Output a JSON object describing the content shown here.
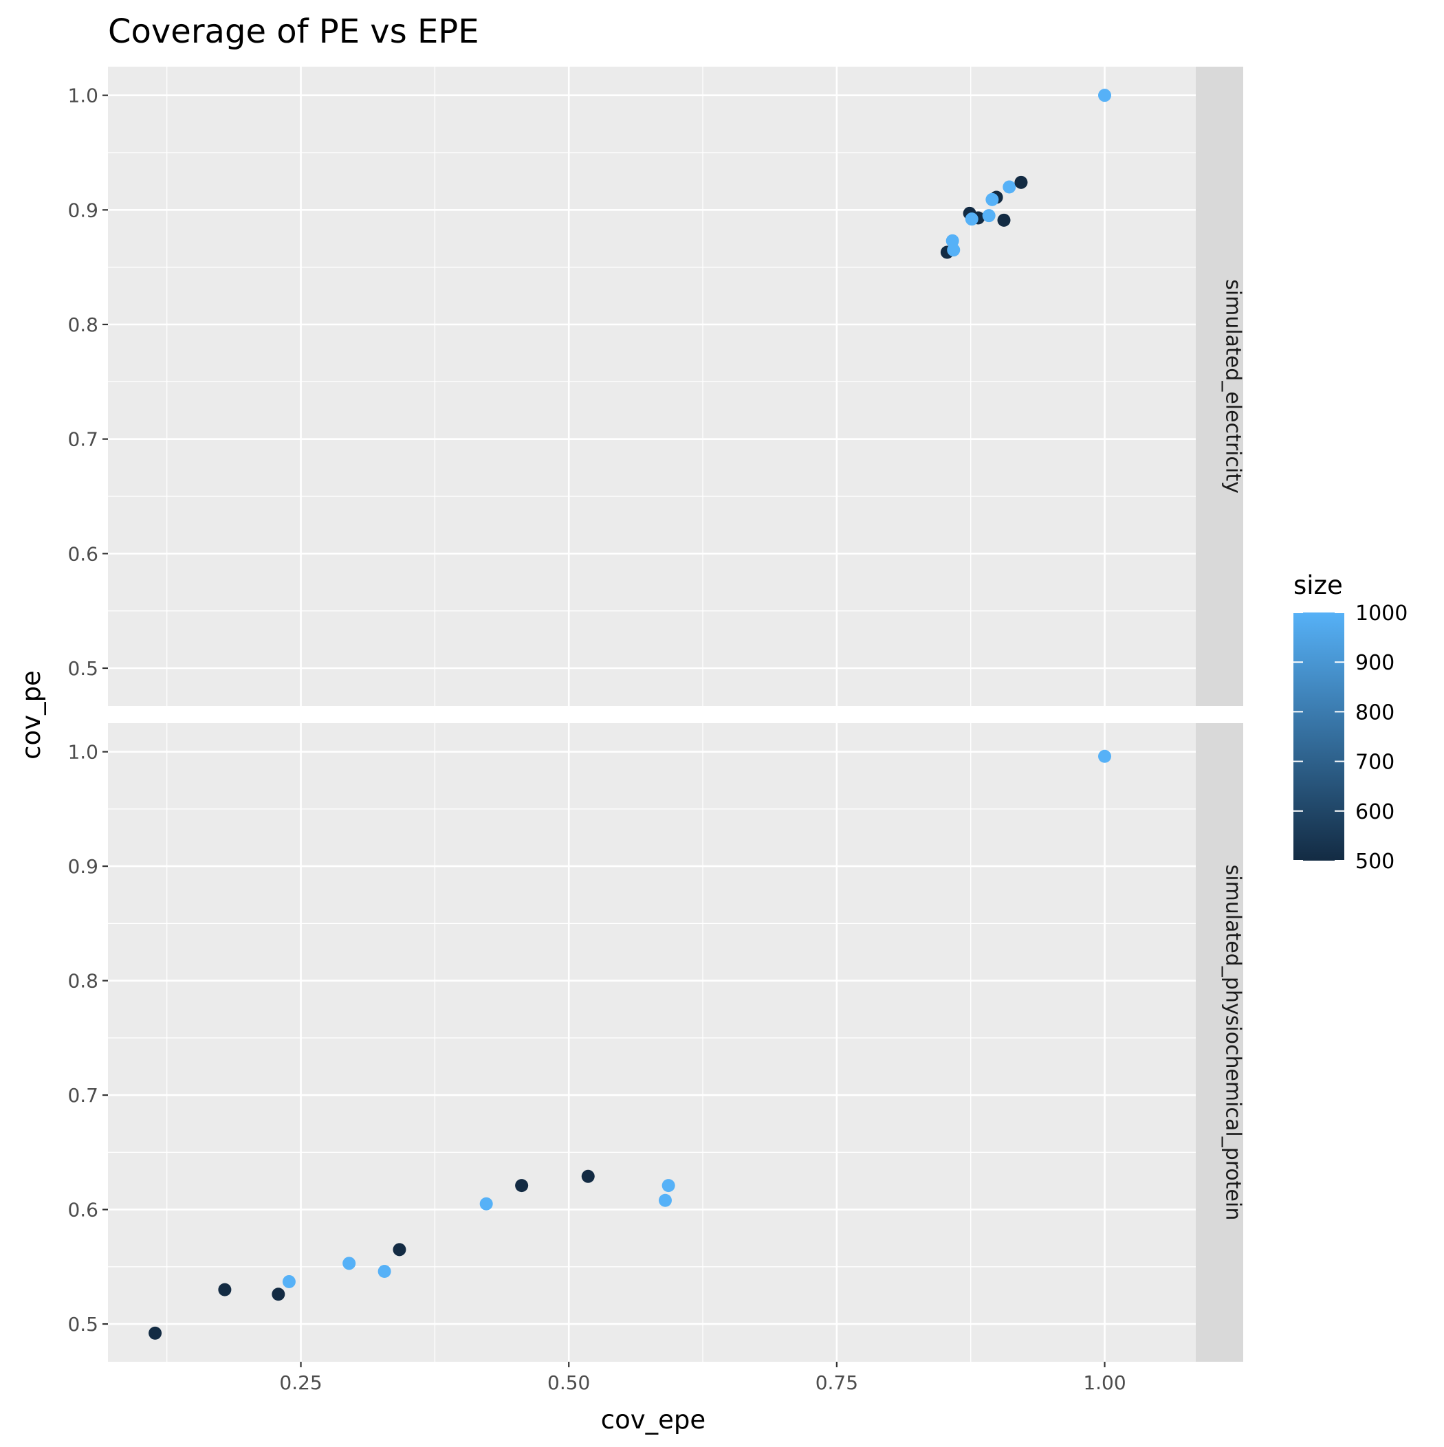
{
  "chart_data": {
    "type": "scatter",
    "title": "Coverage of PE vs EPE",
    "xlabel": "cov_epe",
    "ylabel": "cov_pe",
    "xlim": [
      0.07,
      1.085
    ],
    "x_ticks": [
      0.25,
      0.5,
      0.75,
      1.0
    ],
    "x_tick_labels": [
      "0.25",
      "0.50",
      "0.75",
      "1.00"
    ],
    "ylim": [
      0.467,
      1.025
    ],
    "y_ticks": [
      0.5,
      0.6,
      0.7,
      0.8,
      0.9,
      1.0
    ],
    "y_tick_labels": [
      "0.5",
      "0.6",
      "0.7",
      "0.8",
      "0.9",
      "1.0"
    ],
    "grid": true,
    "facet_by": "dataset",
    "legend": {
      "title": "size",
      "placement": "right",
      "type": "colorbar",
      "range": [
        500,
        1000
      ],
      "tick_values": [
        500,
        600,
        700,
        800,
        900,
        1000
      ],
      "tick_labels": [
        "500",
        "600",
        "700",
        "800",
        "900",
        "1000"
      ],
      "color_low": "#132B43",
      "color_high": "#56B1F7"
    },
    "panels": [
      {
        "label": "simulated_electricity",
        "points": [
          {
            "x": 0.853,
            "y": 0.863,
            "size": 500
          },
          {
            "x": 0.858,
            "y": 0.873,
            "size": 1000
          },
          {
            "x": 0.859,
            "y": 0.865,
            "size": 1000
          },
          {
            "x": 0.874,
            "y": 0.897,
            "size": 500
          },
          {
            "x": 0.877,
            "y": 0.893,
            "size": 500
          },
          {
            "x": 0.882,
            "y": 0.893,
            "size": 500
          },
          {
            "x": 0.876,
            "y": 0.892,
            "size": 1000
          },
          {
            "x": 0.892,
            "y": 0.895,
            "size": 1000
          },
          {
            "x": 0.899,
            "y": 0.911,
            "size": 500
          },
          {
            "x": 0.895,
            "y": 0.909,
            "size": 1000
          },
          {
            "x": 0.906,
            "y": 0.891,
            "size": 500
          },
          {
            "x": 0.911,
            "y": 0.92,
            "size": 1000
          },
          {
            "x": 0.922,
            "y": 0.924,
            "size": 500
          },
          {
            "x": 1.0,
            "y": 1.0,
            "size": 1000
          }
        ]
      },
      {
        "label": "simulated_physiochemical_protein",
        "points": [
          {
            "x": 0.114,
            "y": 0.492,
            "size": 500
          },
          {
            "x": 0.179,
            "y": 0.53,
            "size": 500
          },
          {
            "x": 0.229,
            "y": 0.526,
            "size": 500
          },
          {
            "x": 0.239,
            "y": 0.537,
            "size": 1000
          },
          {
            "x": 0.295,
            "y": 0.553,
            "size": 1000
          },
          {
            "x": 0.328,
            "y": 0.546,
            "size": 1000
          },
          {
            "x": 0.342,
            "y": 0.565,
            "size": 500
          },
          {
            "x": 0.423,
            "y": 0.605,
            "size": 1000
          },
          {
            "x": 0.456,
            "y": 0.621,
            "size": 500
          },
          {
            "x": 0.518,
            "y": 0.629,
            "size": 500
          },
          {
            "x": 0.59,
            "y": 0.608,
            "size": 1000
          },
          {
            "x": 0.593,
            "y": 0.621,
            "size": 1000
          },
          {
            "x": 1.0,
            "y": 0.996,
            "size": 1000
          }
        ]
      }
    ]
  }
}
